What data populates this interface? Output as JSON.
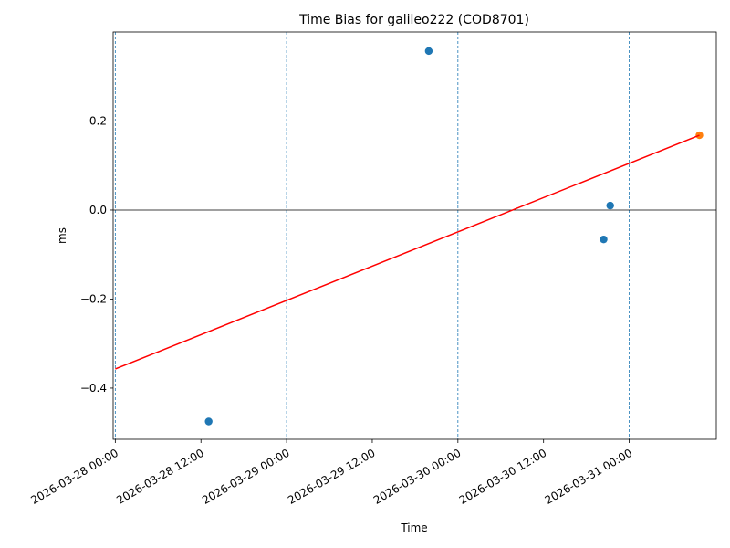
{
  "chart_data": {
    "type": "scatter",
    "title": "Time Bias for galileo222 (COD8701)",
    "xlabel": "Time",
    "ylabel": "ms",
    "xlim": [
      "2026-03-27 23:42",
      "2026-03-31 12:12"
    ],
    "ylim": [
      -0.515,
      0.4
    ],
    "x_ticks": [
      "2026-03-28 00:00",
      "2026-03-28 12:00",
      "2026-03-29 00:00",
      "2026-03-29 12:00",
      "2026-03-30 00:00",
      "2026-03-30 12:00",
      "2026-03-31 00:00"
    ],
    "y_ticks": [
      -0.4,
      -0.2,
      0.0,
      0.2
    ],
    "y_tick_labels": [
      "−0.4",
      "−0.2",
      "0.0",
      "0.2"
    ],
    "vertical_gridlines_at": [
      "2026-03-28 00:00",
      "2026-03-29 00:00",
      "2026-03-30 00:00",
      "2026-03-31 00:00"
    ],
    "horizontal_reference_line": 0.0,
    "series": [
      {
        "kind": "points",
        "color": "#1f77b4",
        "points": [
          {
            "x": "2026-03-28 13:05",
            "y": -0.475
          },
          {
            "x": "2026-03-29 19:55",
            "y": 0.357
          },
          {
            "x": "2026-03-30 20:25",
            "y": -0.066
          },
          {
            "x": "2026-03-30 21:20",
            "y": 0.01
          }
        ]
      },
      {
        "kind": "points",
        "color": "#ff7f0e",
        "points": [
          {
            "x": "2026-03-31 09:50",
            "y": 0.168
          }
        ]
      },
      {
        "kind": "line",
        "color": "#ff0000",
        "points": [
          {
            "x": "2026-03-28 00:00",
            "y": -0.357
          },
          {
            "x": "2026-03-31 09:50",
            "y": 0.168
          }
        ]
      }
    ]
  }
}
